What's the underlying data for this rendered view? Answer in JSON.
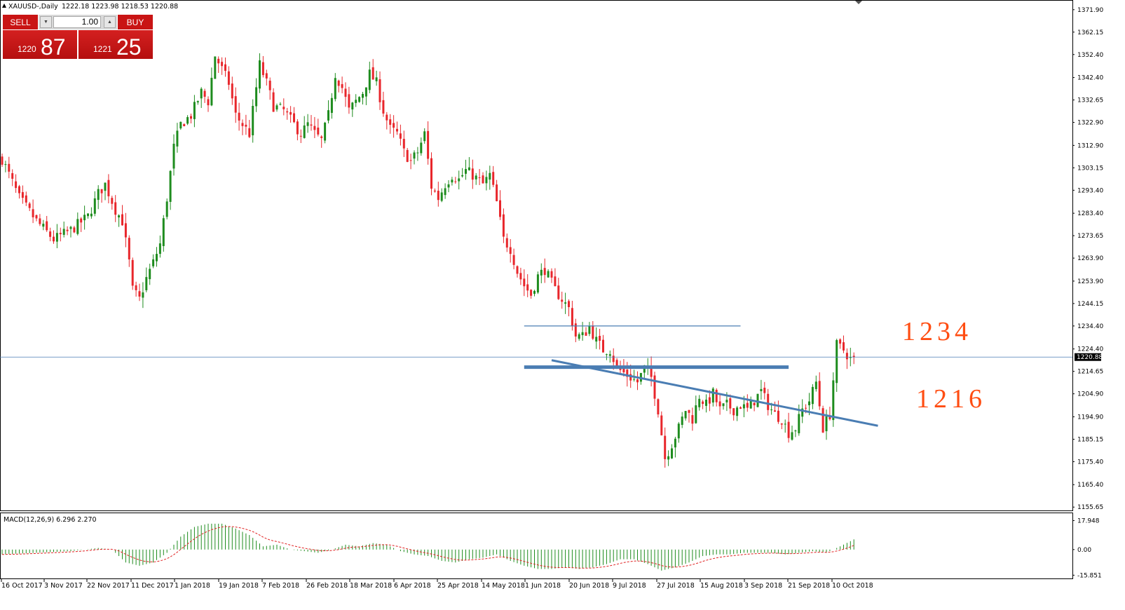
{
  "header": {
    "symbol": "XAUUSD-,Daily",
    "ohlc": "1222.18 1223.98 1218.53 1220.88"
  },
  "trade_panel": {
    "sell_label": "SELL",
    "buy_label": "BUY",
    "lot_value": "1.00",
    "sell_price_small": "1220",
    "sell_price_big": "87",
    "buy_price_small": "1221",
    "buy_price_big": "25"
  },
  "colors": {
    "bull": "#1e8c1e",
    "bear": "#e8262b",
    "trendline": "#4a7db3",
    "annotation": "#ff4d12",
    "macd_signal": "#e02020"
  },
  "chart_data": {
    "type": "candlestick",
    "price_axis_ticks": [
      "1371.90",
      "1362.15",
      "1352.40",
      "1342.40",
      "1332.65",
      "1322.90",
      "1312.90",
      "1303.15",
      "1293.40",
      "1283.40",
      "1273.65",
      "1263.90",
      "1253.90",
      "1244.15",
      "1234.40",
      "1224.40",
      "1214.65",
      "1204.90",
      "1194.90",
      "1185.15",
      "1175.40",
      "1165.40",
      "1155.65"
    ],
    "ylim": [
      1154.5,
      1375.5
    ],
    "current_price": "1220.88",
    "date_labels": [
      "16 Oct 2017",
      "3 Nov 2017",
      "22 Nov 2017",
      "11 Dec 2017",
      "1 Jan 2018",
      "19 Jan 2018",
      "7 Feb 2018",
      "26 Feb 2018",
      "18 Mar 2018",
      "6 Apr 2018",
      "25 Apr 2018",
      "14 May 2018",
      "1 Jun 2018",
      "20 Jun 2018",
      "9 Jul 2018",
      "27 Jul 2018",
      "15 Aug 2018",
      "3 Sep 2018",
      "21 Sep 2018",
      "10 Oct 2018"
    ],
    "price_path": [
      [
        0,
        1307
      ],
      [
        5,
        1290
      ],
      [
        10,
        1280
      ],
      [
        15,
        1272
      ],
      [
        20,
        1276
      ],
      [
        25,
        1282
      ],
      [
        28,
        1292
      ],
      [
        30,
        1296
      ],
      [
        33,
        1285
      ],
      [
        35,
        1280
      ],
      [
        37,
        1262
      ],
      [
        38,
        1250
      ],
      [
        40,
        1246
      ],
      [
        42,
        1255
      ],
      [
        44,
        1262
      ],
      [
        46,
        1270
      ],
      [
        48,
        1290
      ],
      [
        50,
        1312
      ],
      [
        52,
        1322
      ],
      [
        55,
        1326
      ],
      [
        58,
        1336
      ],
      [
        60,
        1332
      ],
      [
        62,
        1352
      ],
      [
        64,
        1346
      ],
      [
        66,
        1340
      ],
      [
        68,
        1326
      ],
      [
        70,
        1322
      ],
      [
        72,
        1318
      ],
      [
        75,
        1348
      ],
      [
        77,
        1340
      ],
      [
        79,
        1330
      ],
      [
        82,
        1328
      ],
      [
        85,
        1322
      ],
      [
        87,
        1318
      ],
      [
        89,
        1322
      ],
      [
        91,
        1318
      ],
      [
        93,
        1315
      ],
      [
        95,
        1326
      ],
      [
        97,
        1344
      ],
      [
        99,
        1338
      ],
      [
        101,
        1328
      ],
      [
        103,
        1332
      ],
      [
        105,
        1336
      ],
      [
        107,
        1344
      ],
      [
        109,
        1340
      ],
      [
        111,
        1328
      ],
      [
        113,
        1320
      ],
      [
        115,
        1318
      ],
      [
        117,
        1310
      ],
      [
        119,
        1306
      ],
      [
        121,
        1310
      ],
      [
        123,
        1318
      ],
      [
        125,
        1295
      ],
      [
        127,
        1290
      ],
      [
        129,
        1296
      ],
      [
        131,
        1300
      ],
      [
        133,
        1298
      ],
      [
        135,
        1302
      ],
      [
        137,
        1300
      ],
      [
        140,
        1296
      ],
      [
        142,
        1300
      ],
      [
        144,
        1288
      ],
      [
        146,
        1272
      ],
      [
        148,
        1268
      ],
      [
        150,
        1258
      ],
      [
        152,
        1252
      ],
      [
        154,
        1248
      ],
      [
        156,
        1256
      ],
      [
        158,
        1259
      ],
      [
        161,
        1250
      ],
      [
        163,
        1246
      ],
      [
        165,
        1242
      ],
      [
        167,
        1230
      ],
      [
        169,
        1230
      ],
      [
        171,
        1234
      ],
      [
        173,
        1228
      ],
      [
        175,
        1224
      ],
      [
        177,
        1224
      ],
      [
        179,
        1216
      ],
      [
        181,
        1214
      ],
      [
        183,
        1212
      ],
      [
        185,
        1210
      ],
      [
        187,
        1216
      ],
      [
        189,
        1212
      ],
      [
        191,
        1198
      ],
      [
        193,
        1177
      ],
      [
        195,
        1183
      ],
      [
        197,
        1190
      ],
      [
        199,
        1198
      ],
      [
        201,
        1194
      ],
      [
        203,
        1204
      ],
      [
        205,
        1200
      ],
      [
        207,
        1205
      ],
      [
        209,
        1198
      ],
      [
        211,
        1200
      ],
      [
        213,
        1198
      ],
      [
        215,
        1200
      ],
      [
        217,
        1198
      ],
      [
        219,
        1202
      ],
      [
        221,
        1206
      ],
      [
        223,
        1200
      ],
      [
        225,
        1196
      ],
      [
        227,
        1194
      ],
      [
        229,
        1188
      ],
      [
        231,
        1190
      ],
      [
        233,
        1198
      ],
      [
        235,
        1202
      ],
      [
        237,
        1210
      ],
      [
        239,
        1190
      ],
      [
        241,
        1196
      ],
      [
        243,
        1226
      ],
      [
        245,
        1224
      ],
      [
        247,
        1220
      ],
      [
        248,
        1220.9
      ]
    ],
    "macd": {
      "label": "MACD(12,26,9) 6.296 2.270",
      "axis_ticks": [
        "17.948",
        "0.00",
        "-15.851"
      ],
      "ylim": [
        -17,
        19
      ],
      "path": [
        [
          0,
          -3
        ],
        [
          10,
          -2
        ],
        [
          20,
          -1
        ],
        [
          28,
          1
        ],
        [
          32,
          0
        ],
        [
          36,
          -8
        ],
        [
          40,
          -10
        ],
        [
          44,
          -8
        ],
        [
          48,
          -2
        ],
        [
          52,
          8
        ],
        [
          56,
          14
        ],
        [
          60,
          16
        ],
        [
          64,
          16
        ],
        [
          68,
          13
        ],
        [
          72,
          9
        ],
        [
          76,
          2
        ],
        [
          80,
          3
        ],
        [
          84,
          0
        ],
        [
          88,
          -1
        ],
        [
          92,
          -2
        ],
        [
          96,
          0
        ],
        [
          100,
          3
        ],
        [
          104,
          2
        ],
        [
          108,
          4
        ],
        [
          112,
          3
        ],
        [
          116,
          -1
        ],
        [
          120,
          -3
        ],
        [
          124,
          -4
        ],
        [
          128,
          -7
        ],
        [
          132,
          -8
        ],
        [
          136,
          -6
        ],
        [
          140,
          -5
        ],
        [
          144,
          -3
        ],
        [
          148,
          -7
        ],
        [
          152,
          -10
        ],
        [
          156,
          -12
        ],
        [
          160,
          -12
        ],
        [
          164,
          -11
        ],
        [
          168,
          -12
        ],
        [
          172,
          -11
        ],
        [
          176,
          -9
        ],
        [
          180,
          -6
        ],
        [
          184,
          -6
        ],
        [
          188,
          -9
        ],
        [
          192,
          -13
        ],
        [
          196,
          -11
        ],
        [
          200,
          -8
        ],
        [
          204,
          -4
        ],
        [
          208,
          -3
        ],
        [
          212,
          -3
        ],
        [
          216,
          -2
        ],
        [
          220,
          -2
        ],
        [
          224,
          -2
        ],
        [
          228,
          -3
        ],
        [
          232,
          -2
        ],
        [
          236,
          -1
        ],
        [
          240,
          -2
        ],
        [
          244,
          2
        ],
        [
          248,
          6.3
        ]
      ]
    },
    "annotations": [
      {
        "text": "1234",
        "price": 1234.4
      },
      {
        "text": "1216",
        "price": 1216
      }
    ],
    "lines": [
      {
        "name": "resistance-line-1234",
        "from": [
          152,
          1234.4
        ],
        "to": [
          215,
          1234.4
        ]
      },
      {
        "name": "support-line-1216",
        "from": [
          152,
          1216.5
        ],
        "to": [
          229,
          1216.5
        ]
      },
      {
        "name": "descending-trendline",
        "from": [
          160,
          1219.5
        ],
        "to": [
          255,
          1191
        ]
      }
    ]
  }
}
